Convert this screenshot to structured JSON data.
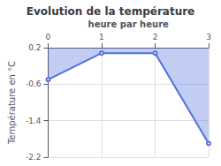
{
  "chart_data": {
    "type": "line",
    "title": "Evolution de la température",
    "xlabel": "heure par heure",
    "ylabel": "Température en °C",
    "x": [
      0,
      1,
      2,
      3
    ],
    "values": [
      -0.5,
      0.08,
      0.08,
      -1.9
    ],
    "xlim": [
      0,
      3
    ],
    "ylim": [
      -2.2,
      0.2
    ],
    "xticks": [
      0,
      1,
      2,
      3
    ],
    "yticks": [
      0.2,
      -0.6,
      -1.4,
      -2.2
    ],
    "grid": true
  }
}
